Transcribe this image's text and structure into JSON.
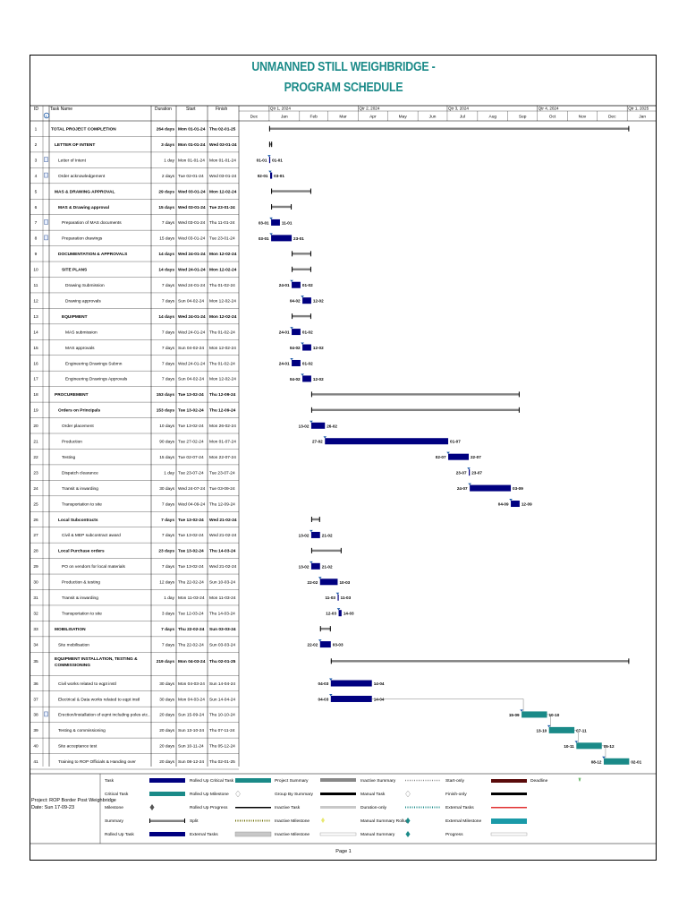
{
  "title_line1": "UNMANNED STILL WEIGHBRIDGE -",
  "title_line2": "PROGRAM SCHEDULE",
  "columns": {
    "id": "ID",
    "name": "Task Name",
    "duration": "Duration",
    "start": "Start",
    "finish": "Finish"
  },
  "timescale": {
    "quarters": [
      "Qtr 1, 2024",
      "Qtr 2, 2024",
      "Qtr 3, 2024",
      "Qtr 4, 2024",
      "Qtr 1, 2025"
    ],
    "months": [
      "Dec",
      "Jan",
      "Feb",
      "Mar",
      "Apr",
      "May",
      "Jun",
      "Jul",
      "Aug",
      "Sep",
      "Oct",
      "Nov",
      "Dec",
      "Jan"
    ],
    "axis_start": "2023-12-01",
    "axis_end": "2025-01-31"
  },
  "colors": {
    "title": "#1a8a88",
    "task_bar": "#000080",
    "critical_bar": "#1a8a88",
    "summary": "#808080"
  },
  "chart_data": {
    "type": "gantt",
    "title": "UNMANNED STILL WEIGHBRIDGE - PROGRAM SCHEDULE",
    "tasks": [
      {
        "id": "1",
        "name": "TOTAL PROJECT COMPLETION",
        "duration": "264 days",
        "start": "Mon 01-01-24",
        "finish": "Thu 02-01-25",
        "level": 0,
        "summary": true,
        "s": "2024-01-01",
        "f": "2025-01-02"
      },
      {
        "id": "2",
        "name": "LETTER OF INTENT",
        "duration": "3 days",
        "start": "Mon 01-01-24",
        "finish": "Wed 03-01-24",
        "level": 1,
        "summary": true,
        "s": "2024-01-01",
        "f": "2024-01-03"
      },
      {
        "id": "3",
        "name": "Letter of Intent",
        "duration": "1 day",
        "start": "Mon 01-01-24",
        "finish": "Mon 01-01-24",
        "level": 2,
        "note": true,
        "s": "2024-01-01",
        "f": "2024-01-01",
        "sl": "01-01",
        "fl": "01-01",
        "milestone": true
      },
      {
        "id": "4",
        "name": "Order acknowledgement",
        "duration": "2 days",
        "start": "Tue 02-01-24",
        "finish": "Wed 03-01-24",
        "level": 2,
        "note": true,
        "s": "2024-01-02",
        "f": "2024-01-03",
        "sl": "02-01",
        "fl": "03-01",
        "milestone": true
      },
      {
        "id": "5",
        "name": "MAS & DRAWING APPROVAL",
        "duration": "29 days",
        "start": "Wed 03-01-24",
        "finish": "Mon 12-02-24",
        "level": 1,
        "summary": true,
        "s": "2024-01-03",
        "f": "2024-02-12"
      },
      {
        "id": "6",
        "name": "MAS & Drawing approval",
        "duration": "15 days",
        "start": "Wed 03-01-24",
        "finish": "Tue 23-01-24",
        "level": 2,
        "summary": true,
        "s": "2024-01-03",
        "f": "2024-01-23"
      },
      {
        "id": "7",
        "name": "Preparation of MAS documents",
        "duration": "7 days",
        "start": "Wed 03-01-24",
        "finish": "Thu 11-01-24",
        "level": 3,
        "note": true,
        "s": "2024-01-03",
        "f": "2024-01-11",
        "sl": "03-01",
        "fl": "11-01"
      },
      {
        "id": "8",
        "name": "Preparation drawings",
        "duration": "15 days",
        "start": "Wed 03-01-24",
        "finish": "Tue 23-01-24",
        "level": 3,
        "note": true,
        "s": "2024-01-03",
        "f": "2024-01-23",
        "sl": "03-01",
        "fl": "23-01"
      },
      {
        "id": "9",
        "name": "DOCUMENTATION & APPROVALS",
        "duration": "14 days",
        "start": "Wed 24-01-24",
        "finish": "Mon 12-02-24",
        "level": 2,
        "summary": true,
        "s": "2024-01-24",
        "f": "2024-02-12"
      },
      {
        "id": "10",
        "name": "SITE PLANS",
        "duration": "14 days",
        "start": "Wed 24-01-24",
        "finish": "Mon 12-02-24",
        "level": 3,
        "summary": true,
        "s": "2024-01-24",
        "f": "2024-02-12"
      },
      {
        "id": "11",
        "name": "Drawing Submission",
        "duration": "7 days",
        "start": "Wed 24-01-24",
        "finish": "Thu 01-02-24",
        "level": 4,
        "s": "2024-01-24",
        "f": "2024-02-01",
        "sl": "24-01",
        "fl": "01-02"
      },
      {
        "id": "12",
        "name": "Drawing approvals",
        "duration": "7 days",
        "start": "Sun 04-02-24",
        "finish": "Mon 12-02-24",
        "level": 4,
        "s": "2024-02-04",
        "f": "2024-02-12",
        "sl": "04-02",
        "fl": "12-02"
      },
      {
        "id": "13",
        "name": "EQUIPMENT",
        "duration": "14 days",
        "start": "Wed 24-01-24",
        "finish": "Mon 12-02-24",
        "level": 3,
        "summary": true,
        "s": "2024-01-24",
        "f": "2024-02-12"
      },
      {
        "id": "14",
        "name": "MAS submission",
        "duration": "7 days",
        "start": "Wed 24-01-24",
        "finish": "Thu 01-02-24",
        "level": 4,
        "s": "2024-01-24",
        "f": "2024-02-01",
        "sl": "24-01",
        "fl": "01-02"
      },
      {
        "id": "15",
        "name": "MAS approvals",
        "duration": "7 days",
        "start": "Sun 04-02-24",
        "finish": "Mon 12-02-24",
        "level": 4,
        "s": "2024-02-04",
        "f": "2024-02-12",
        "sl": "04-02",
        "fl": "12-02"
      },
      {
        "id": "16",
        "name": "Engineering Drawings Submn",
        "duration": "7 days",
        "start": "Wed 24-01-24",
        "finish": "Thu 01-02-24",
        "level": 4,
        "s": "2024-01-24",
        "f": "2024-02-01",
        "sl": "24-01",
        "fl": "01-02"
      },
      {
        "id": "17",
        "name": "Engineering Drawings Approvals",
        "duration": "7 days",
        "start": "Sun 04-02-24",
        "finish": "Mon 12-02-24",
        "level": 4,
        "s": "2024-02-04",
        "f": "2024-02-12",
        "sl": "04-02",
        "fl": "12-02"
      },
      {
        "id": "18",
        "name": "PROCUREMENT",
        "duration": "153 days",
        "start": "Tue 13-02-24",
        "finish": "Thu 12-09-24",
        "level": 1,
        "summary": true,
        "s": "2024-02-13",
        "f": "2024-09-12"
      },
      {
        "id": "19",
        "name": "Orders on Principals",
        "duration": "153 days",
        "start": "Tue 13-02-24",
        "finish": "Thu 12-09-24",
        "level": 2,
        "summary": true,
        "s": "2024-02-13",
        "f": "2024-09-12"
      },
      {
        "id": "20",
        "name": "Order placement",
        "duration": "10 days",
        "start": "Tue 13-02-24",
        "finish": "Mon 26-02-24",
        "level": 3,
        "s": "2024-02-13",
        "f": "2024-02-26",
        "sl": "13-02",
        "fl": "26-02"
      },
      {
        "id": "21",
        "name": "Production",
        "duration": "90 days",
        "start": "Tue 27-02-24",
        "finish": "Mon 01-07-24",
        "level": 3,
        "s": "2024-02-27",
        "f": "2024-07-01",
        "sl": "27-02",
        "fl": "01-07"
      },
      {
        "id": "22",
        "name": "Testing",
        "duration": "15 days",
        "start": "Tue 02-07-24",
        "finish": "Mon 22-07-24",
        "level": 3,
        "s": "2024-07-02",
        "f": "2024-07-22",
        "sl": "02-07",
        "fl": "22-07"
      },
      {
        "id": "23",
        "name": "Dispatch clearance",
        "duration": "1 day",
        "start": "Tue 23-07-24",
        "finish": "Tue 23-07-24",
        "level": 3,
        "s": "2024-07-23",
        "f": "2024-07-23",
        "sl": "23-07",
        "fl": "23-07",
        "milestone": true
      },
      {
        "id": "24",
        "name": "Transit & inwarding",
        "duration": "30 days",
        "start": "Wed 24-07-24",
        "finish": "Tue 03-09-24",
        "level": 3,
        "s": "2024-07-24",
        "f": "2024-09-03",
        "sl": "24-07",
        "fl": "03-09"
      },
      {
        "id": "25",
        "name": "Transportation to site",
        "duration": "7 days",
        "start": "Wed 04-09-24",
        "finish": "Thu 12-09-24",
        "level": 3,
        "s": "2024-09-04",
        "f": "2024-09-12",
        "sl": "04-09",
        "fl": "12-09"
      },
      {
        "id": "26",
        "name": "Local Subcontracts",
        "duration": "7 days",
        "start": "Tue 13-02-24",
        "finish": "Wed 21-02-24",
        "level": 2,
        "summary": true,
        "s": "2024-02-13",
        "f": "2024-02-21"
      },
      {
        "id": "27",
        "name": "Civil & MEP subcontract award",
        "duration": "7 days",
        "start": "Tue 13-02-24",
        "finish": "Wed 21-02-24",
        "level": 3,
        "s": "2024-02-13",
        "f": "2024-02-21",
        "sl": "13-02",
        "fl": "21-02"
      },
      {
        "id": "28",
        "name": "Local Purchase orders",
        "duration": "23 days",
        "start": "Tue 13-02-24",
        "finish": "Thu 14-03-24",
        "level": 2,
        "summary": true,
        "s": "2024-02-13",
        "f": "2024-03-14"
      },
      {
        "id": "29",
        "name": "PO on vendors for local materials",
        "duration": "7 days",
        "start": "Tue 13-02-24",
        "finish": "Wed 21-02-24",
        "level": 3,
        "s": "2024-02-13",
        "f": "2024-02-21",
        "sl": "13-02",
        "fl": "21-02"
      },
      {
        "id": "30",
        "name": "Production & testing",
        "duration": "12 days",
        "start": "Thu 22-02-24",
        "finish": "Sun 10-03-24",
        "level": 3,
        "s": "2024-02-22",
        "f": "2024-03-10",
        "sl": "22-02",
        "fl": "10-03"
      },
      {
        "id": "31",
        "name": "Transit & inwarding",
        "duration": "1 day",
        "start": "Mon 11-03-24",
        "finish": "Mon 11-03-24",
        "level": 3,
        "s": "2024-03-11",
        "f": "2024-03-11",
        "sl": "11-03",
        "fl": "11-03",
        "milestone": true
      },
      {
        "id": "32",
        "name": "Transportation to site",
        "duration": "3 days",
        "start": "Tue 12-03-24",
        "finish": "Thu 14-03-24",
        "level": 3,
        "s": "2024-03-12",
        "f": "2024-03-14",
        "sl": "12-03",
        "fl": "14-03"
      },
      {
        "id": "33",
        "name": "MOBILISATION",
        "duration": "7 days",
        "start": "Thu 22-02-24",
        "finish": "Sun 03-03-24",
        "level": 1,
        "summary": true,
        "s": "2024-02-22",
        "f": "2024-03-03"
      },
      {
        "id": "34",
        "name": "Site mobilisation",
        "duration": "7 days",
        "start": "Thu 22-02-24",
        "finish": "Sun 03-03-24",
        "level": 2,
        "s": "2024-02-22",
        "f": "2024-03-03",
        "sl": "22-02",
        "fl": "03-03"
      },
      {
        "id": "35",
        "name": "EQUIPMENT INSTALLATION, TESTING & COMMISSIONING",
        "duration": "219 days",
        "start": "Mon 04-03-24",
        "finish": "Thu 02-01-25",
        "level": 1,
        "summary": true,
        "tall": true,
        "s": "2024-03-04",
        "f": "2025-01-02"
      },
      {
        "id": "36",
        "name": "Civil works related to eqpt instl",
        "duration": "30 days",
        "start": "Mon 04-03-24",
        "finish": "Sun 14-04-24",
        "level": 2,
        "s": "2024-03-04",
        "f": "2024-04-14",
        "sl": "04-03",
        "fl": "14-04"
      },
      {
        "id": "37",
        "name": "Electrical & Data works related to eqpt instl",
        "duration": "30 days",
        "start": "Mon 04-03-24",
        "finish": "Sun 14-04-24",
        "level": 2,
        "s": "2024-03-04",
        "f": "2024-04-14",
        "sl": "04-03",
        "fl": "14-04"
      },
      {
        "id": "38",
        "name": "Erection/Installation of eqmt including poles etc..",
        "duration": "20 days",
        "start": "Sun 15-09-24",
        "finish": "Thu 10-10-24",
        "level": 2,
        "note": true,
        "critical": true,
        "s": "2024-09-15",
        "f": "2024-10-10",
        "sl": "15-09",
        "fl": "10-10"
      },
      {
        "id": "39",
        "name": "Testing & commissioning",
        "duration": "20 days",
        "start": "Sun 13-10-24",
        "finish": "Thu 07-11-24",
        "level": 2,
        "critical": true,
        "s": "2024-10-13",
        "f": "2024-11-07",
        "sl": "13-10",
        "fl": "07-11"
      },
      {
        "id": "40",
        "name": "Site acceptance test",
        "duration": "20 days",
        "start": "Sun 10-11-24",
        "finish": "Thu 05-12-24",
        "level": 2,
        "critical": true,
        "s": "2024-11-10",
        "f": "2024-12-05",
        "sl": "10-11",
        "fl": "05-12"
      },
      {
        "id": "41",
        "name": "Training to ROP Officials & Handing over",
        "duration": "20 days",
        "start": "Sun 08-12-24",
        "finish": "Thu 02-01-25",
        "level": 2,
        "critical": true,
        "s": "2024-12-08",
        "f": "2025-01-02",
        "sl": "08-12",
        "fl": "02-01"
      }
    ]
  },
  "legend": {
    "project": "Project: ROP Border Post Weighbridge",
    "date": "Date: Sun 17-09-23",
    "col1": [
      "Task",
      "Critical Task",
      "Milestone",
      "Summary",
      "Rolled Up Task"
    ],
    "col2": [
      "Rolled Up Critical Task",
      "Rolled Up Milestone",
      "Rolled Up Progress",
      "Split",
      "External Tasks"
    ],
    "col3": [
      "Project Summary",
      "Group By Summary",
      "Inactive Task",
      "Inactive Milestone",
      "Inactive Milestone"
    ],
    "col4": [
      "Inactive Summary",
      "Manual Task",
      "Duration-only",
      "Manual Summary Rollup",
      "Manual Summary"
    ],
    "col5": [
      "Start-only",
      "Finish-only",
      "External Tasks",
      "External Milestone",
      "Progress"
    ],
    "col6": [
      "Deadline"
    ]
  },
  "page": "Page 1"
}
